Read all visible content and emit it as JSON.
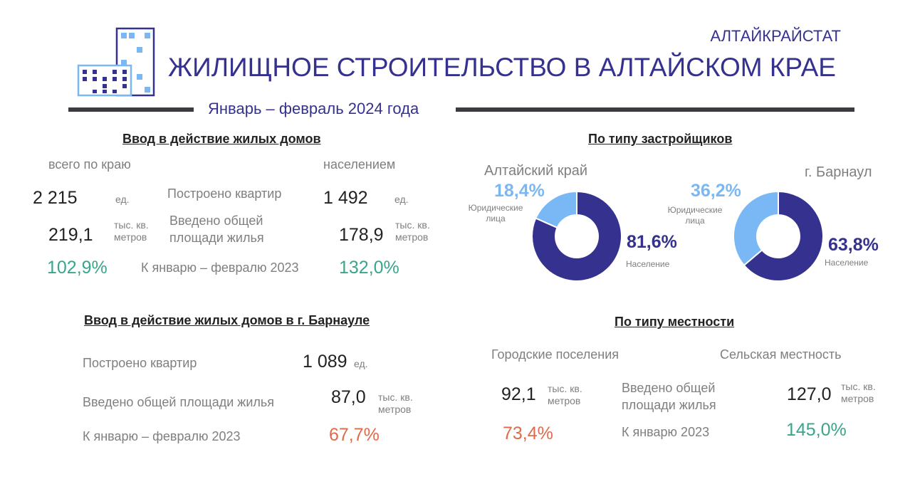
{
  "header": {
    "org": "АЛТАЙКРАЙСТАТ",
    "title": "ЖИЛИЩНОЕ СТРОИТЕЛЬСТВО В АЛТАЙСКОМ КРАЕ",
    "period": "Январь – февраль 2024 года"
  },
  "krai": {
    "heading": "Ввод в действие жилых домов",
    "col_total": "всего по краю",
    "col_pop": "населением",
    "flats_label": "Построено квартир",
    "flats_total": "2 215",
    "flats_pop": "1 492",
    "unit_ed": "ед.",
    "area_label": "Введено общей площади жилья",
    "area_total": "219,1",
    "area_pop": "178,9",
    "unit_area": "тыс. кв. метров",
    "cmp_label": "К январю – февралю 2023",
    "cmp_total": "102,9%",
    "cmp_pop": "132,0%"
  },
  "barnaul": {
    "heading": "Ввод в действие жилых домов в г. Барнауле",
    "flats_label": "Построено квартир",
    "flats": "1 089",
    "unit_ed": "ед.",
    "area_label": "Введено общей площади жилья",
    "area": "87,0",
    "unit_area": "тыс. кв. метров",
    "cmp_label": "К январю – февралю 2023",
    "cmp": "67,7%"
  },
  "locality": {
    "heading": "По типу местности",
    "urban": "Городские поселения",
    "rural": "Сельская местность",
    "area_label": "Введено общей площади жилья",
    "urban_area": "92,1",
    "rural_area": "127,0",
    "unit_area": "тыс. кв. метров",
    "cmp_label": "К январю 2023",
    "urban_cmp": "73,4%",
    "rural_cmp": "145,0%"
  },
  "chart_data": [
    {
      "type": "pie",
      "title": "Алтайский край",
      "heading": "По типу застройщиков",
      "categories": [
        "Юридические лица",
        "Население"
      ],
      "values": [
        18.4,
        81.6
      ],
      "labels": [
        "18,4%",
        "81,6%"
      ],
      "colors": [
        "#7ab8f5",
        "#35318f"
      ]
    },
    {
      "type": "pie",
      "title": "г. Барнаул",
      "categories": [
        "Юридические лица",
        "Население"
      ],
      "values": [
        36.2,
        63.8
      ],
      "labels": [
        "36,2%",
        "63,8%"
      ],
      "colors": [
        "#7ab8f5",
        "#35318f"
      ]
    }
  ]
}
